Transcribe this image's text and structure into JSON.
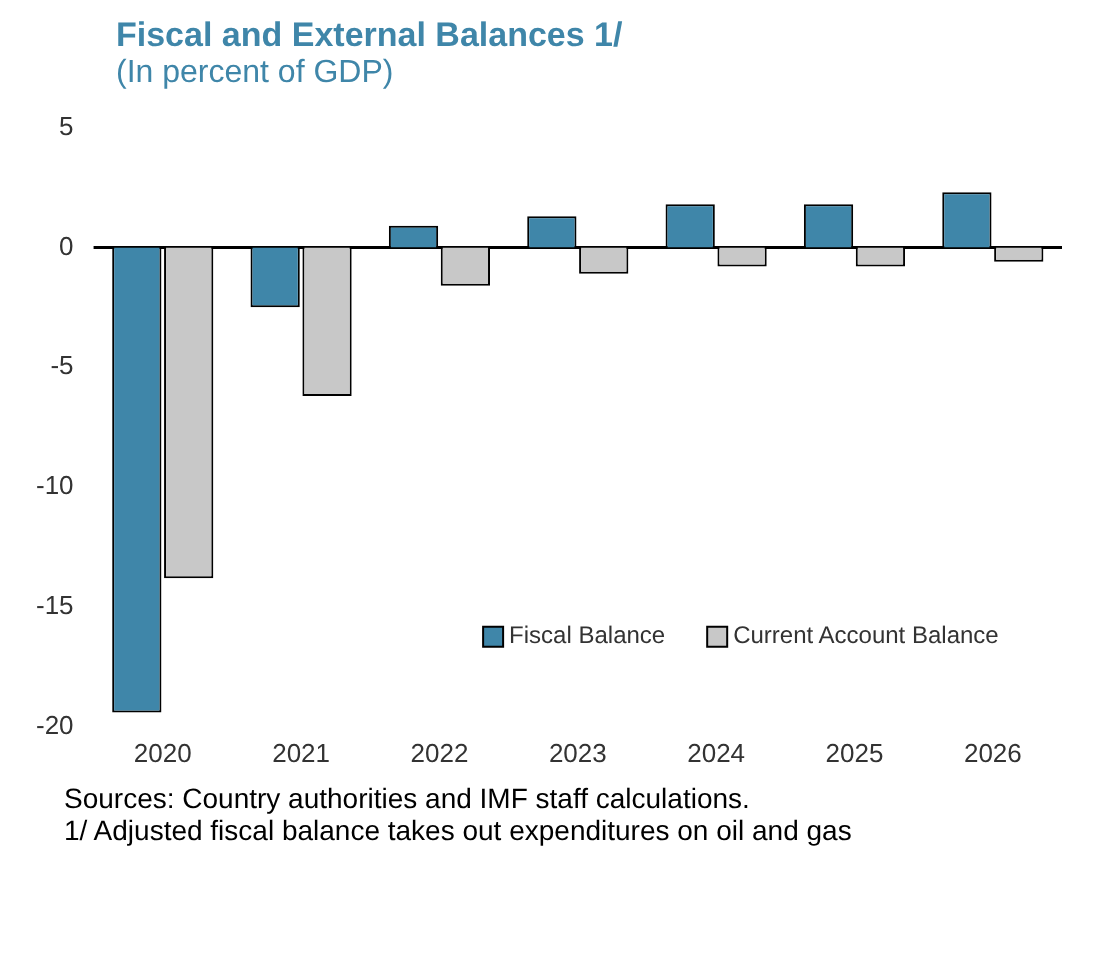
{
  "chart_data": {
    "type": "bar",
    "title": "Fiscal and External Balances 1/",
    "subtitle": "(In percent of GDP)",
    "categories": [
      "2020",
      "2021",
      "2022",
      "2023",
      "2024",
      "2025",
      "2026"
    ],
    "series": [
      {
        "name": "Fiscal Balance",
        "color": "#3f86a9",
        "values": [
          -19.4,
          -2.5,
          0.9,
          1.3,
          1.8,
          1.8,
          2.3
        ]
      },
      {
        "name": "Current Account Balance",
        "color": "#c8c8c8",
        "values": [
          -13.8,
          -6.2,
          -1.6,
          -1.1,
          -0.8,
          -0.8,
          -0.6
        ]
      }
    ],
    "ref_lines": [
      {
        "axis": "y",
        "value": 0,
        "color": "#000000"
      }
    ],
    "ylim": [
      -20,
      5
    ],
    "yticks": [
      -20,
      -15,
      -10,
      -5,
      0,
      5
    ],
    "grid": false,
    "legend": "bottom right",
    "annotations": [
      "Sources: Country authorities and IMF staff calculations.",
      "1/ Adjusted fiscal balance takes out expenditures on oil and gas"
    ]
  }
}
